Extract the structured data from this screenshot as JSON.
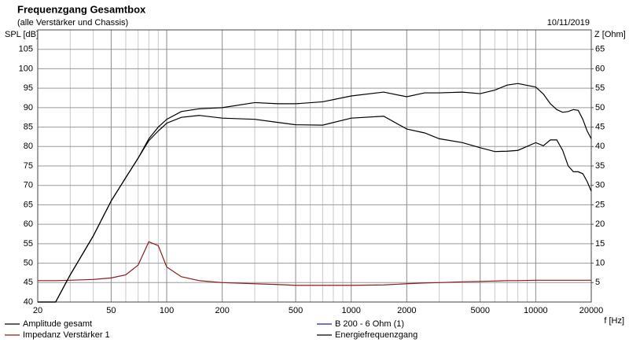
{
  "chart_data": {
    "type": "line",
    "title": "Frequenzgang Gesamtbox",
    "subtitle": "(alle Verstärker und Chassis)",
    "date": "10/11/2019",
    "ylabel": "SPL [dB]",
    "y2label": "Z [Ohm]",
    "xlabel": "f [Hz]",
    "xscale": "log",
    "grid": true,
    "xlim": [
      20,
      20000
    ],
    "xticks": [
      20,
      50,
      100,
      200,
      500,
      1000,
      2000,
      5000,
      10000,
      20000
    ],
    "xminorticks": [
      30,
      40,
      60,
      70,
      80,
      90,
      300,
      400,
      600,
      700,
      800,
      900,
      3000,
      4000,
      6000,
      7000,
      8000,
      9000
    ],
    "ylim": [
      40,
      110
    ],
    "yticks": [
      40,
      45,
      50,
      55,
      60,
      65,
      70,
      75,
      80,
      85,
      90,
      95,
      100,
      105
    ],
    "y2lim": [
      0,
      70
    ],
    "y2ticks": [
      5,
      10,
      15,
      20,
      25,
      30,
      35,
      40,
      45,
      50,
      55,
      60,
      65
    ],
    "x": [
      20,
      25,
      30,
      40,
      50,
      60,
      70,
      80,
      90,
      100,
      120,
      150,
      200,
      300,
      400,
      500,
      700,
      1000,
      1500,
      2000,
      2500,
      3000,
      4000,
      5000,
      6000,
      7000,
      8000,
      10000,
      11000,
      12000,
      13000,
      14000,
      15000,
      16000,
      17000,
      18000,
      19000,
      20000
    ],
    "series": [
      {
        "name": "Amplitude gesamt",
        "color": "#000000",
        "values": [
          40,
          40,
          47,
          57,
          66,
          72,
          77,
          82,
          85,
          87,
          89,
          89.7,
          90,
          91.3,
          91,
          91,
          91.5,
          93,
          94,
          92.8,
          93.8,
          93.8,
          94,
          93.6,
          94.5,
          95.8,
          96.2,
          95.3,
          93.5,
          91,
          89.5,
          88.8,
          89,
          89.5,
          89.3,
          87,
          84,
          82
        ]
      },
      {
        "name": "Impedanz Verstärker 1",
        "color": "#8b1a1a",
        "axis": "y2",
        "values": [
          5.5,
          5.5,
          5.6,
          5.8,
          6.2,
          7,
          9.5,
          15.5,
          14.5,
          9,
          6.5,
          5.5,
          5,
          4.7,
          4.5,
          4.3,
          4.3,
          4.3,
          4.4,
          4.7,
          4.9,
          5,
          5.2,
          5.3,
          5.4,
          5.5,
          5.5,
          5.6,
          5.6,
          5.6,
          5.6,
          5.6,
          5.6,
          5.6,
          5.6,
          5.6,
          5.6,
          5.6
        ]
      },
      {
        "name": "B 200 - 6 Ohm (1)",
        "color": "#1f1fb4",
        "values": [
          null,
          null,
          null,
          null,
          null,
          null,
          null,
          null,
          null,
          null,
          null,
          null,
          null,
          null,
          null,
          null,
          null,
          null,
          null,
          null,
          null,
          null,
          null,
          null,
          null,
          null,
          null,
          null,
          null,
          null,
          null,
          null,
          null,
          null,
          null,
          null,
          null,
          null
        ]
      },
      {
        "name": "Energiefrequenzgang",
        "color": "#000000",
        "values": [
          40,
          40,
          47,
          57,
          66,
          72,
          77,
          81.5,
          84,
          86,
          87.5,
          88,
          87.3,
          87,
          86.2,
          85.6,
          85.5,
          87.3,
          87.8,
          84.5,
          83.5,
          82,
          81,
          79.7,
          78.7,
          78.8,
          79,
          81,
          80.2,
          81.7,
          81.7,
          79,
          75,
          73.5,
          73.5,
          73,
          71,
          68.5
        ]
      }
    ]
  }
}
